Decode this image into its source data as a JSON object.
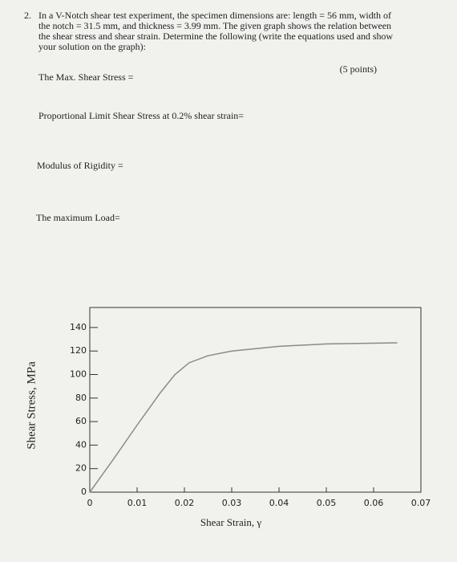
{
  "question": {
    "number": "2.",
    "lines": [
      "In a V-Notch shear test experiment, the specimen dimensions are: length = 56 mm, width of",
      "the notch = 31.5 mm, and thickness = 3.99 mm. The given graph shows the relation between",
      "the shear stress and shear strain. Determine the following (write the equations used and show",
      "your solution on the graph):"
    ],
    "points": "(5 points)",
    "items": [
      "The Max. Shear Stress =",
      "Proportional Limit Shear Stress at 0.2% shear strain=",
      "Modulus of Rigidity =",
      "The maximum Load="
    ]
  },
  "chart_data": {
    "type": "line",
    "x_label": "Shear Strain, γ",
    "y_label": "Shear Stress, MPa",
    "x": [
      0,
      0.005,
      0.01,
      0.015,
      0.018,
      0.021,
      0.025,
      0.03,
      0.04,
      0.05,
      0.065
    ],
    "values": [
      0,
      28,
      57,
      85,
      100,
      110,
      116,
      120,
      124,
      126,
      127
    ],
    "color": "#8a8a8a",
    "xlim": [
      0,
      0.07
    ],
    "xticks": [
      0,
      0.01,
      0.02,
      0.03,
      0.04,
      0.05,
      0.06,
      0.07
    ],
    "ylim": [
      0,
      157
    ],
    "yticks": [
      0,
      20,
      40,
      60,
      80,
      100,
      120,
      140
    ]
  }
}
